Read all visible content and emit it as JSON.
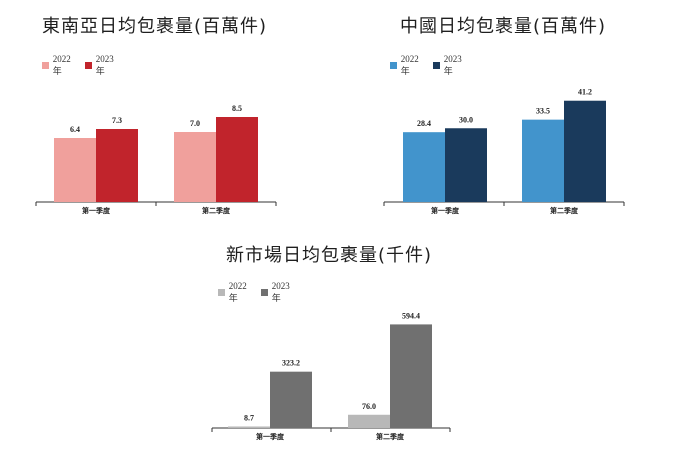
{
  "chart_data": [
    {
      "type": "bar",
      "title": "東南亞日均包裹量(百萬件)",
      "categories": [
        "第一季度",
        "第二季度"
      ],
      "series": [
        {
          "name": "2022年",
          "values": [
            6.4,
            7.0
          ],
          "color": "#f0a09c"
        },
        {
          "name": "2023年",
          "values": [
            7.3,
            8.5
          ],
          "color": "#c1242c"
        }
      ],
      "value_labels": [
        [
          "6.4",
          "7.0"
        ],
        [
          "7.3",
          "8.5"
        ]
      ],
      "ylim": [
        0,
        10
      ],
      "legend": "top-left",
      "grid": false
    },
    {
      "type": "bar",
      "title": "中國日均包裹量(百萬件)",
      "categories": [
        "第一季度",
        "第二季度"
      ],
      "series": [
        {
          "name": "2022年",
          "values": [
            28.4,
            33.5
          ],
          "color": "#4294cc"
        },
        {
          "name": "2023年",
          "values": [
            30.0,
            41.2
          ],
          "color": "#1a3a5c"
        }
      ],
      "value_labels": [
        [
          "28.4",
          "33.5"
        ],
        [
          "30.0",
          "41.2"
        ]
      ],
      "ylim": [
        0,
        48
      ],
      "legend": "top-left",
      "grid": false
    },
    {
      "type": "bar",
      "title": "新市場日均包裹量(千件)",
      "categories": [
        "第一季度",
        "第二季度"
      ],
      "series": [
        {
          "name": "2022年",
          "values": [
            8.7,
            76.0
          ],
          "color": "#b8b8b8"
        },
        {
          "name": "2023年",
          "values": [
            323.2,
            594.4
          ],
          "color": "#707070"
        }
      ],
      "value_labels": [
        [
          "8.7",
          "76.0"
        ],
        [
          "323.2",
          "594.4"
        ]
      ],
      "ylim": [
        0,
        700
      ],
      "legend": "top-left",
      "grid": false
    }
  ]
}
